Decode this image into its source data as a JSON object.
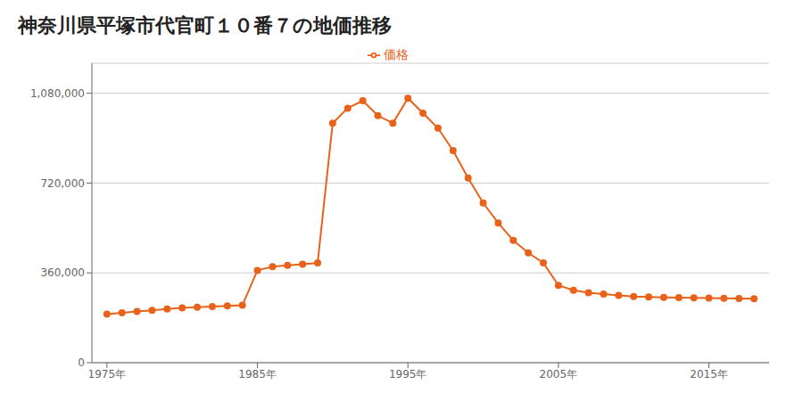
{
  "chart_data": {
    "type": "line",
    "title": "神奈川県平塚市代官町１０番７の地価推移",
    "x": [
      1975,
      1976,
      1977,
      1978,
      1979,
      1980,
      1981,
      1982,
      1983,
      1984,
      1985,
      1986,
      1987,
      1988,
      1989,
      1990,
      1991,
      1992,
      1993,
      1994,
      1995,
      1996,
      1997,
      1998,
      1999,
      2000,
      2001,
      2002,
      2003,
      2004,
      2005,
      2006,
      2007,
      2008,
      2009,
      2010,
      2011,
      2012,
      2013,
      2014,
      2015,
      2016,
      2017,
      2018
    ],
    "series": [
      {
        "name": "価格",
        "color": "#e8621a",
        "marker": "circle",
        "values": [
          195000,
          200000,
          205000,
          210000,
          215000,
          220000,
          222000,
          225000,
          228000,
          230000,
          370000,
          385000,
          390000,
          395000,
          400000,
          960000,
          1020000,
          1050000,
          990000,
          960000,
          1060000,
          1000000,
          940000,
          850000,
          740000,
          640000,
          560000,
          490000,
          440000,
          400000,
          310000,
          290000,
          280000,
          275000,
          270000,
          265000,
          263000,
          262000,
          261000,
          260000,
          259000,
          258000,
          257000,
          256000
        ]
      }
    ],
    "xlim": [
      1974,
      2019
    ],
    "xticks": [
      {
        "value": 1975,
        "label": "1975年"
      },
      {
        "value": 1985,
        "label": "1985年"
      },
      {
        "value": 1995,
        "label": "1995年"
      },
      {
        "value": 2005,
        "label": "2005年"
      },
      {
        "value": 2015,
        "label": "2015年"
      }
    ],
    "ylim": [
      0,
      1200000
    ],
    "yticks": [
      0,
      {
        "value": 360000,
        "label": "360,000"
      },
      {
        "value": 720000,
        "label": "720,000"
      },
      {
        "value": 1080000,
        "label": "1,080,000"
      }
    ],
    "grid": "y",
    "legend": "top"
  }
}
